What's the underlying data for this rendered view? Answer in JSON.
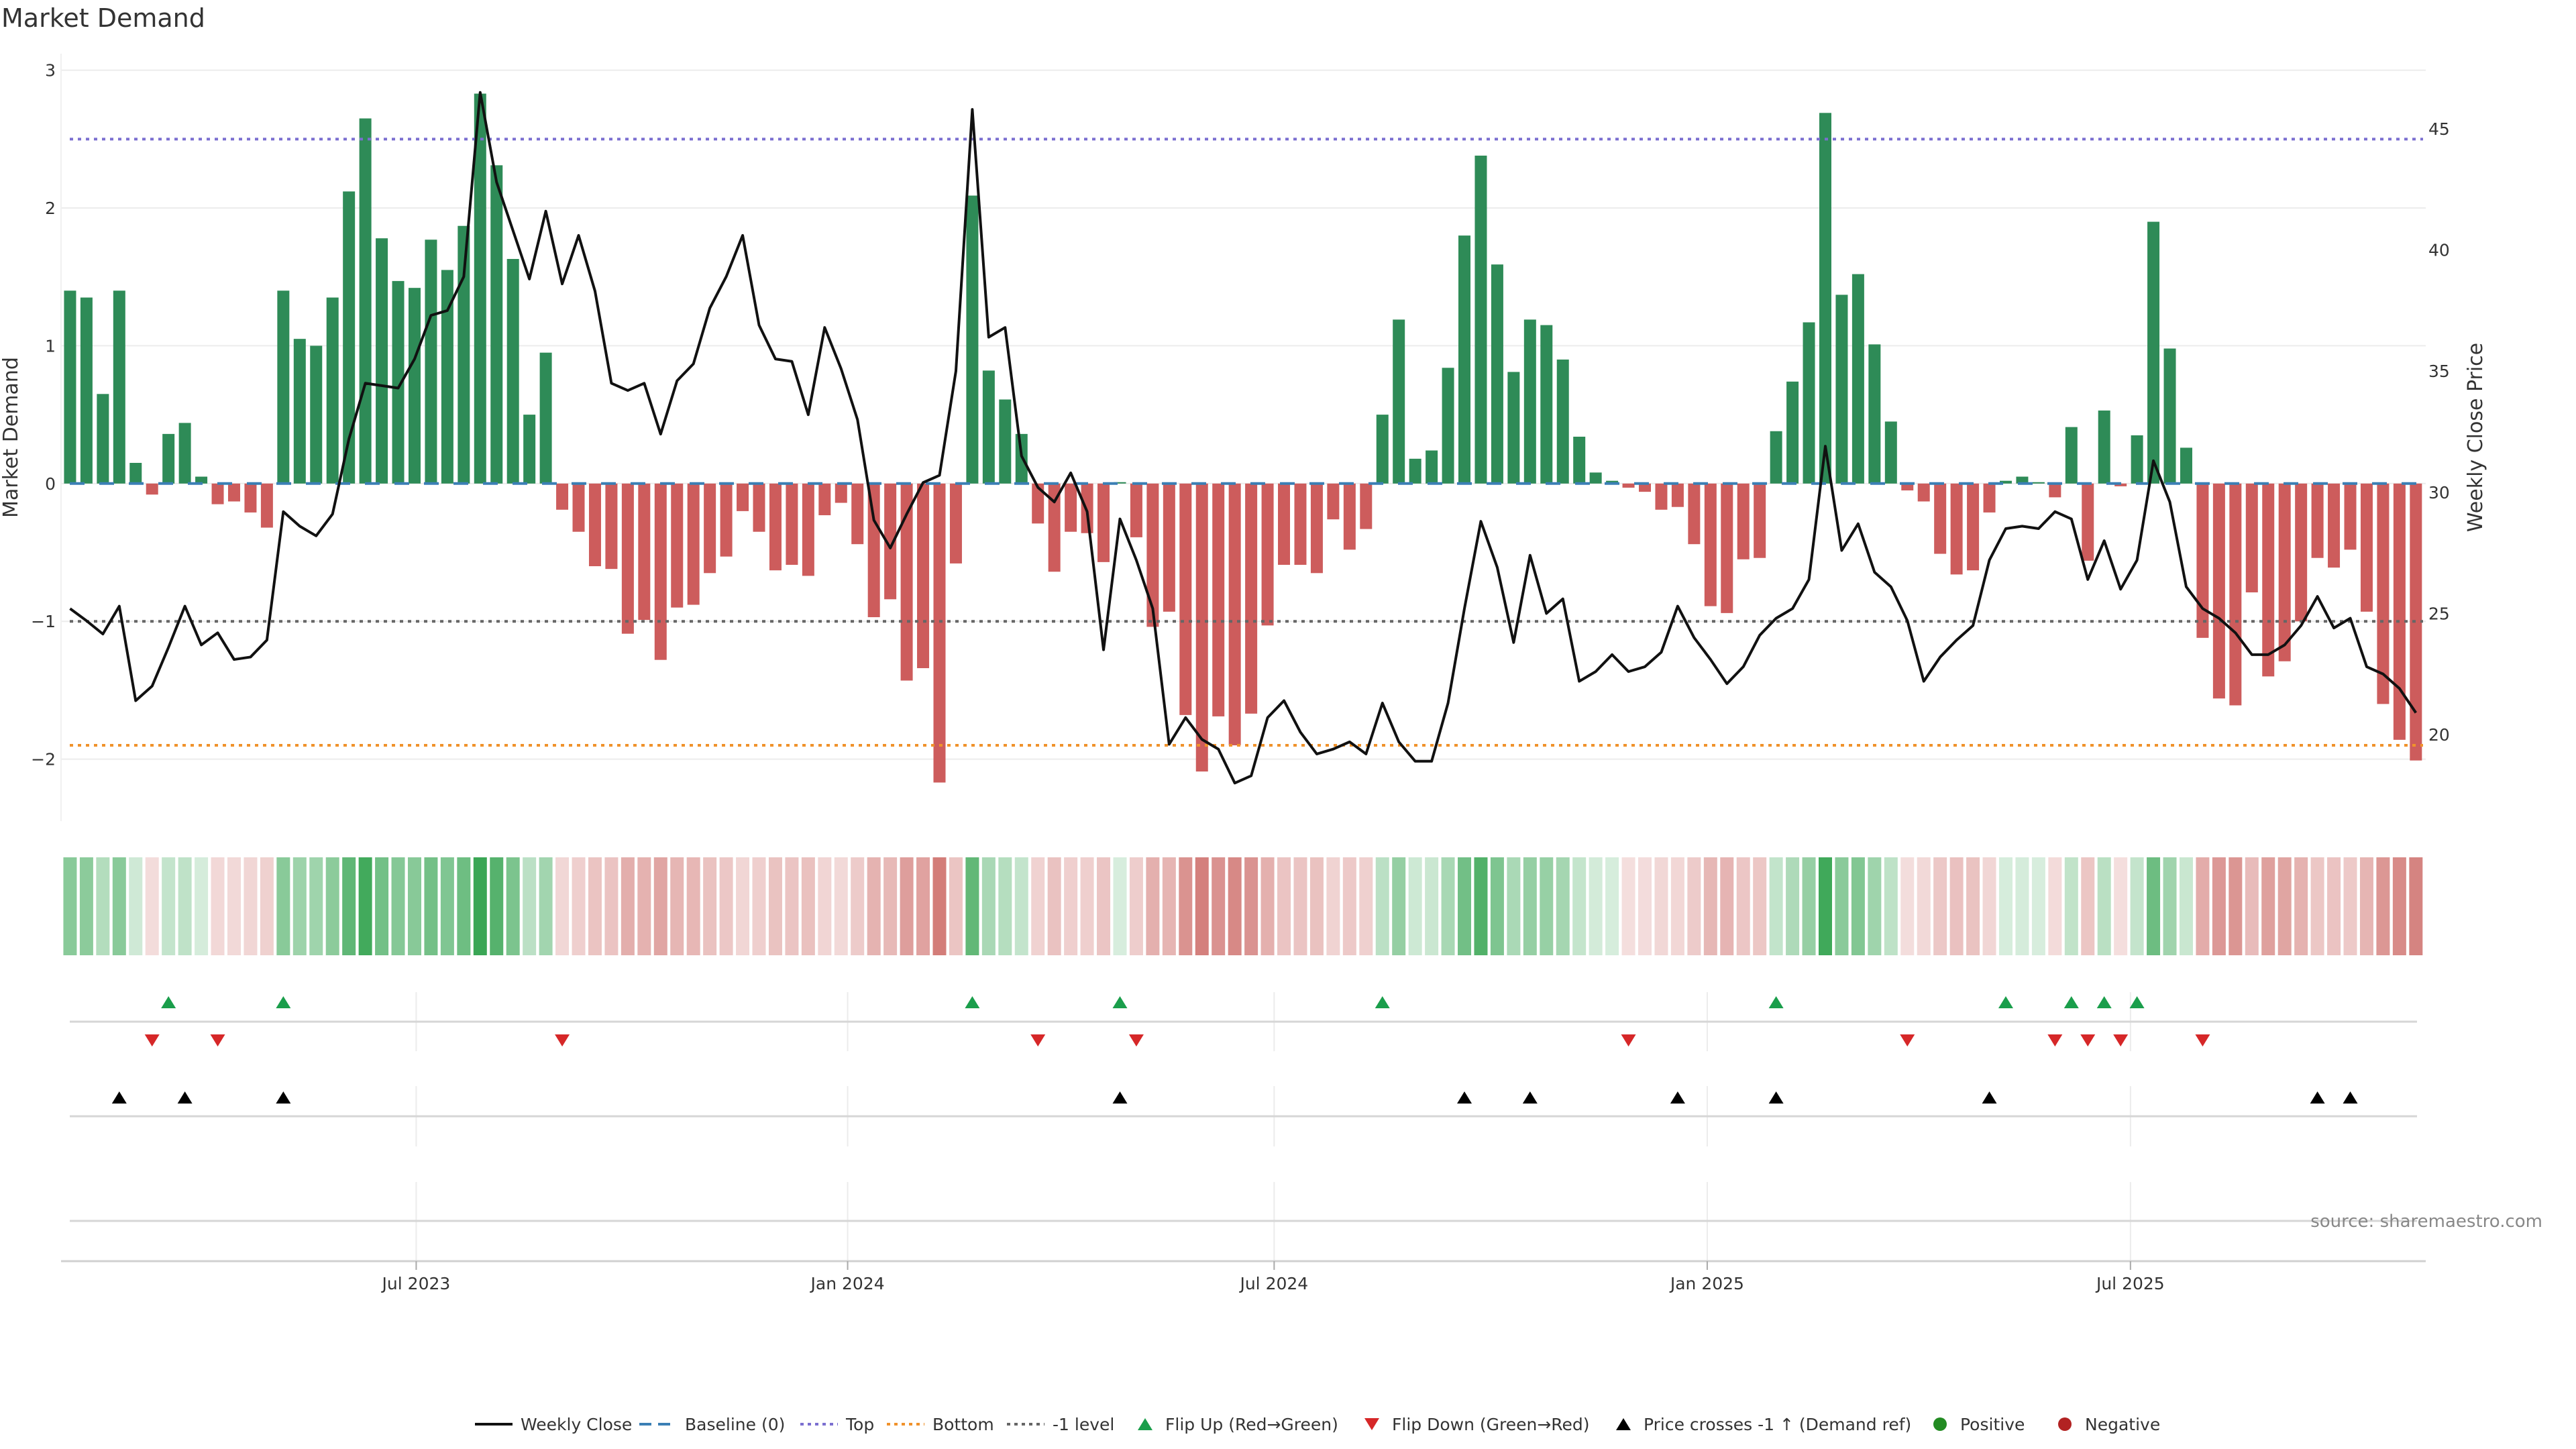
{
  "chart_data": {
    "type": "bar",
    "title": "Market Demand",
    "ylabel": "Market Demand",
    "y2label": "Weekly Close Price",
    "ylim": [
      -2.45,
      3.12
    ],
    "y2lim": [
      16.43,
      48.1
    ],
    "xlim_weeks": [
      -0.55,
      143.6
    ],
    "yticks": [
      {
        "v": -2,
        "label": "−2"
      },
      {
        "v": -1,
        "label": "−1"
      },
      {
        "v": 0,
        "label": "0"
      },
      {
        "v": 1,
        "label": "1"
      },
      {
        "v": 2,
        "label": "2"
      },
      {
        "v": 3,
        "label": "3"
      }
    ],
    "y2ticks": [
      {
        "v": 20,
        "label": "20"
      },
      {
        "v": 25,
        "label": "25"
      },
      {
        "v": 30,
        "label": "30"
      },
      {
        "v": 35,
        "label": "35"
      },
      {
        "v": 40,
        "label": "40"
      },
      {
        "v": 45,
        "label": "45"
      }
    ],
    "xticks": [
      {
        "week": 21.1,
        "label": "Jul 2023"
      },
      {
        "week": 47.4,
        "label": "Jan 2024"
      },
      {
        "week": 73.4,
        "label": "Jul 2024"
      },
      {
        "week": 99.8,
        "label": "Jan 2025"
      },
      {
        "week": 125.6,
        "label": "Jul 2025"
      }
    ],
    "grid": true,
    "levels": {
      "baseline": 0,
      "top": 2.5,
      "bottom": -1.9,
      "minus_one": -1
    },
    "demand": [
      1.4,
      1.35,
      0.65,
      1.4,
      0.15,
      -0.08,
      0.36,
      0.44,
      0.05,
      -0.15,
      -0.13,
      -0.21,
      -0.32,
      1.4,
      1.05,
      1.0,
      1.35,
      2.12,
      2.65,
      1.78,
      1.47,
      1.42,
      1.77,
      1.55,
      1.87,
      2.83,
      2.31,
      1.63,
      0.5,
      0.95,
      -0.19,
      -0.35,
      -0.6,
      -0.62,
      -1.09,
      -0.99,
      -1.28,
      -0.9,
      -0.88,
      -0.65,
      -0.53,
      -0.2,
      -0.35,
      -0.63,
      -0.59,
      -0.67,
      -0.23,
      -0.14,
      -0.44,
      -0.97,
      -0.84,
      -1.43,
      -1.34,
      -2.17,
      -0.58,
      2.09,
      0.82,
      0.61,
      0.36,
      -0.29,
      -0.64,
      -0.35,
      -0.36,
      -0.57,
      0.01,
      -0.39,
      -1.04,
      -0.93,
      -1.68,
      -2.09,
      -1.69,
      -1.9,
      -1.67,
      -1.03,
      -0.59,
      -0.59,
      -0.65,
      -0.26,
      -0.48,
      -0.33,
      0.5,
      1.19,
      0.18,
      0.24,
      0.84,
      1.8,
      2.38,
      1.59,
      0.81,
      1.19,
      1.15,
      0.9,
      0.34,
      0.08,
      0.02,
      -0.03,
      -0.06,
      -0.19,
      -0.17,
      -0.44,
      -0.89,
      -0.94,
      -0.55,
      -0.54,
      0.38,
      0.74,
      1.17,
      2.69,
      1.37,
      1.52,
      1.01,
      0.45,
      -0.05,
      -0.13,
      -0.51,
      -0.66,
      -0.63,
      -0.21,
      0.02,
      0.05,
      0.01,
      -0.1,
      0.41,
      -0.56,
      0.53,
      -0.02,
      0.35,
      1.9,
      0.98,
      0.26,
      -1.12,
      -1.56,
      -1.61,
      -0.79,
      -1.4,
      -1.29,
      -1.0,
      -0.54,
      -0.61,
      -0.48,
      -0.93,
      -1.6,
      -1.86,
      -2.01
    ],
    "close": [
      25.2,
      24.7,
      24.15,
      25.3,
      21.4,
      22.0,
      23.6,
      25.3,
      23.7,
      24.2,
      23.1,
      23.2,
      23.9,
      29.2,
      28.6,
      28.2,
      29.1,
      32.2,
      34.5,
      34.4,
      34.3,
      35.5,
      37.3,
      37.5,
      38.9,
      46.5,
      42.8,
      40.8,
      38.8,
      41.6,
      38.6,
      40.6,
      38.3,
      34.5,
      34.2,
      34.5,
      32.4,
      34.6,
      35.3,
      37.6,
      38.9,
      40.6,
      36.9,
      35.5,
      35.4,
      33.2,
      36.8,
      35.1,
      33.0,
      28.85,
      27.7,
      29.1,
      30.4,
      30.7,
      35.0,
      45.8,
      36.4,
      36.8,
      31.5,
      30.2,
      29.6,
      30.8,
      29.2,
      23.5,
      28.9,
      27.2,
      25.2,
      19.6,
      20.7,
      19.8,
      19.4,
      18.0,
      18.3,
      20.7,
      21.4,
      20.1,
      19.2,
      19.4,
      19.7,
      19.2,
      21.3,
      19.7,
      18.9,
      18.9,
      21.3,
      25.2,
      28.8,
      26.9,
      23.8,
      27.4,
      25.0,
      25.6,
      22.2,
      22.6,
      23.3,
      22.6,
      22.8,
      23.4,
      25.3,
      24.0,
      23.1,
      22.1,
      22.8,
      24.1,
      24.8,
      25.2,
      26.4,
      31.9,
      27.6,
      28.7,
      26.7,
      26.1,
      24.7,
      22.2,
      23.2,
      23.9,
      24.5,
      27.2,
      28.5,
      28.6,
      28.5,
      29.2,
      28.9,
      26.4,
      28.0,
      26.0,
      27.2,
      31.3,
      29.6,
      26.1,
      25.2,
      24.8,
      24.2,
      23.3,
      23.3,
      23.7,
      24.5,
      25.7,
      24.4,
      24.8,
      22.8,
      22.5,
      21.9,
      20.9
    ],
    "flip_up_weeks": [
      6,
      13,
      55,
      64,
      80,
      104,
      118,
      122,
      124,
      126
    ],
    "flip_down_weeks": [
      5,
      9,
      30,
      59,
      65,
      95,
      112,
      121,
      123,
      125,
      130
    ],
    "price_cross_weeks": [
      3,
      7,
      13,
      64,
      85,
      89,
      98,
      104,
      117,
      137,
      139
    ],
    "legend": [
      {
        "label": "Weekly Close",
        "kind": "line",
        "color": "#111111"
      },
      {
        "label": "Baseline (0)",
        "kind": "dash",
        "color": "#3b7fb5"
      },
      {
        "label": "Top",
        "kind": "dot",
        "color": "#7b6fd0"
      },
      {
        "label": "Bottom",
        "kind": "dot",
        "color": "#f0922b"
      },
      {
        "label": "-1 level",
        "kind": "dot",
        "color": "#666666"
      },
      {
        "label": "Flip Up (Red→Green)",
        "kind": "up",
        "color": "#1a9e4b"
      },
      {
        "label": "Flip Down (Green→Red)",
        "kind": "down",
        "color": "#d62728"
      },
      {
        "label": "Price crosses -1 ↑ (Demand ref)",
        "kind": "up",
        "color": "#000000"
      },
      {
        "label": "Positive",
        "kind": "dot-marker",
        "color": "#228b22"
      },
      {
        "label": "Negative",
        "kind": "dot-marker",
        "color": "#b22222"
      }
    ],
    "colors": {
      "positive_bar": "#2e8b57",
      "negative_bar": "#cd5c5c",
      "heat_pos": "#3aa655",
      "heat_neg": "#c9605c",
      "line": "#111111"
    }
  },
  "source": "source: sharemaestro.com"
}
